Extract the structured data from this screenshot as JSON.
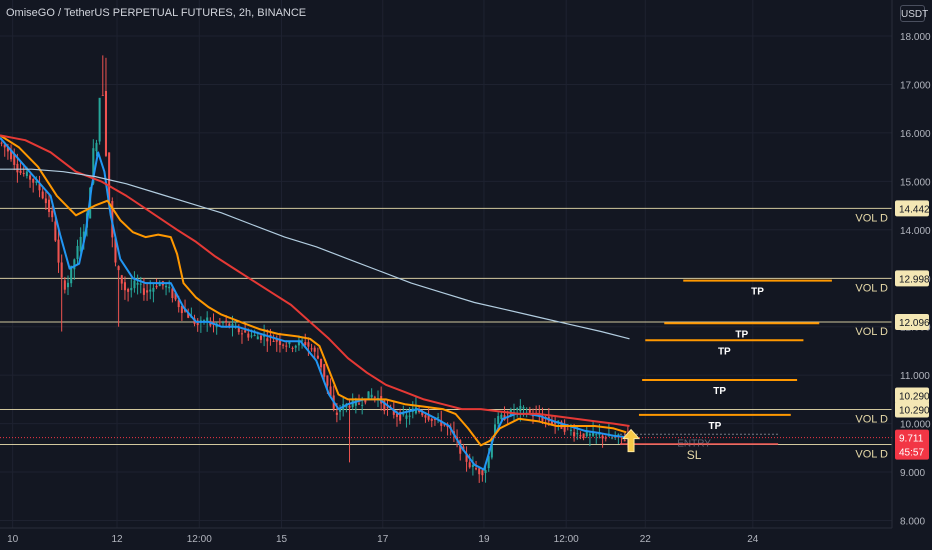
{
  "header": {
    "symbol_title": "OmiseGO / TetherUS PERPETUAL FUTURES, 2h, BINANCE",
    "currency": "USDT"
  },
  "colors": {
    "background": "#131722",
    "grid": "#1e2230",
    "candle_up": "#26a69a",
    "candle_down": "#ef5350",
    "ma_fast": "#2196f3",
    "ma_mid": "#ff9800",
    "ma_slow": "#e53935",
    "ma_long": "#b2cde0",
    "level_line": "#f4e7b4",
    "tp_line": "#ff9800",
    "sl_line": "#ef5350",
    "entry_arrow": "#f7c948",
    "price_badge": "#f23645"
  },
  "chart_data": {
    "type": "candlestick",
    "title": "OmiseGO / TetherUS PERPETUAL FUTURES, 2h, BINANCE",
    "timeframe": "2h",
    "y_axis": {
      "min": 7.8,
      "max": 18.3,
      "ticks": [
        8.0,
        9.0,
        10.0,
        11.0,
        12.0,
        13.0,
        14.0,
        15.0,
        16.0,
        17.0,
        18.0
      ],
      "tick_labels": [
        "8.000",
        "9.000",
        "10.000",
        "11.000",
        "12.000",
        "13.000",
        "14.000",
        "15.000",
        "16.000",
        "17.000",
        "18.000"
      ]
    },
    "x_axis": {
      "min": 0,
      "max": 282,
      "ticks": [
        {
          "x": 4,
          "label": "10"
        },
        {
          "x": 37,
          "label": "12"
        },
        {
          "x": 63,
          "label": "12:00"
        },
        {
          "x": 89,
          "label": "15"
        },
        {
          "x": 121,
          "label": "17"
        },
        {
          "x": 153,
          "label": "19"
        },
        {
          "x": 179,
          "label": "12:00"
        },
        {
          "x": 204,
          "label": "22"
        },
        {
          "x": 238,
          "label": "24"
        }
      ]
    },
    "candle_count": 199,
    "candle_anchors": [
      [
        0,
        15.8
      ],
      [
        3,
        15.6
      ],
      [
        6,
        15.2
      ],
      [
        9,
        15.1
      ],
      [
        12,
        14.9
      ],
      [
        15,
        14.5
      ],
      [
        17,
        14.1
      ],
      [
        19,
        13.0
      ],
      [
        21,
        12.8
      ],
      [
        23,
        13.3
      ],
      [
        26,
        13.9
      ],
      [
        28,
        14.4
      ],
      [
        29,
        15.5
      ],
      [
        31,
        16.0
      ],
      [
        32,
        17.5
      ],
      [
        33,
        16.2
      ],
      [
        34,
        15.0
      ],
      [
        36,
        13.4
      ],
      [
        38,
        13.0
      ],
      [
        40,
        12.7
      ],
      [
        43,
        12.9
      ],
      [
        46,
        12.7
      ],
      [
        50,
        12.9
      ],
      [
        53,
        12.8
      ],
      [
        55,
        12.6
      ],
      [
        57,
        12.4
      ],
      [
        60,
        12.2
      ],
      [
        63,
        12.0
      ],
      [
        65,
        12.2
      ],
      [
        67,
        12.0
      ],
      [
        70,
        12.1
      ],
      [
        73,
        12.0
      ],
      [
        76,
        11.9
      ],
      [
        80,
        11.8
      ],
      [
        84,
        11.8
      ],
      [
        88,
        11.7
      ],
      [
        92,
        11.6
      ],
      [
        96,
        11.7
      ],
      [
        99,
        11.5
      ],
      [
        101,
        11.3
      ],
      [
        103,
        10.9
      ],
      [
        105,
        10.4
      ],
      [
        106,
        10.1
      ],
      [
        107,
        10.3
      ],
      [
        110,
        10.4
      ],
      [
        113,
        10.4
      ],
      [
        115,
        10.5
      ],
      [
        117,
        10.6
      ],
      [
        120,
        10.5
      ],
      [
        122,
        10.3
      ],
      [
        125,
        10.2
      ],
      [
        128,
        10.1
      ],
      [
        131,
        10.3
      ],
      [
        134,
        10.2
      ],
      [
        137,
        10.1
      ],
      [
        140,
        10.0
      ],
      [
        143,
        9.8
      ],
      [
        146,
        9.4
      ],
      [
        149,
        9.1
      ],
      [
        152,
        9.0
      ],
      [
        154,
        9.1
      ],
      [
        156,
        10.0
      ],
      [
        158,
        10.1
      ],
      [
        161,
        10.2
      ],
      [
        164,
        10.3
      ],
      [
        168,
        10.2
      ],
      [
        172,
        10.1
      ],
      [
        176,
        10.0
      ],
      [
        179,
        9.9
      ],
      [
        182,
        9.8
      ],
      [
        186,
        9.75
      ],
      [
        190,
        9.75
      ],
      [
        194,
        9.7
      ],
      [
        198,
        9.7
      ]
    ],
    "series": [
      {
        "type": "line",
        "role": "ma_fast",
        "points": [
          [
            0,
            15.9
          ],
          [
            4,
            15.6
          ],
          [
            8,
            15.3
          ],
          [
            12,
            15.0
          ],
          [
            16,
            14.7
          ],
          [
            19,
            13.9
          ],
          [
            22,
            13.2
          ],
          [
            25,
            13.3
          ],
          [
            27,
            13.9
          ],
          [
            29,
            14.9
          ],
          [
            31,
            15.6
          ],
          [
            33,
            15.2
          ],
          [
            35,
            14.3
          ],
          [
            38,
            13.4
          ],
          [
            42,
            13.0
          ],
          [
            46,
            12.9
          ],
          [
            50,
            12.9
          ],
          [
            54,
            12.9
          ],
          [
            58,
            12.4
          ],
          [
            62,
            12.1
          ],
          [
            66,
            12.1
          ],
          [
            70,
            12.0
          ],
          [
            75,
            12.0
          ],
          [
            80,
            11.9
          ],
          [
            85,
            11.8
          ],
          [
            90,
            11.7
          ],
          [
            95,
            11.7
          ],
          [
            100,
            11.3
          ],
          [
            104,
            10.6
          ],
          [
            107,
            10.3
          ],
          [
            110,
            10.4
          ],
          [
            115,
            10.5
          ],
          [
            120,
            10.5
          ],
          [
            126,
            10.2
          ],
          [
            132,
            10.3
          ],
          [
            138,
            10.1
          ],
          [
            142,
            9.95
          ],
          [
            146,
            9.5
          ],
          [
            150,
            9.15
          ],
          [
            153,
            9.05
          ],
          [
            156,
            9.7
          ],
          [
            159,
            10.1
          ],
          [
            163,
            10.2
          ],
          [
            167,
            10.2
          ],
          [
            171,
            10.15
          ],
          [
            175,
            10.05
          ],
          [
            180,
            9.95
          ],
          [
            185,
            9.85
          ],
          [
            190,
            9.8
          ],
          [
            194,
            9.75
          ],
          [
            198,
            9.72
          ]
        ]
      },
      {
        "type": "line",
        "role": "ma_mid",
        "points": [
          [
            0,
            15.95
          ],
          [
            6,
            15.7
          ],
          [
            12,
            15.3
          ],
          [
            18,
            14.7
          ],
          [
            24,
            14.3
          ],
          [
            30,
            14.5
          ],
          [
            34,
            14.6
          ],
          [
            38,
            14.2
          ],
          [
            42,
            13.95
          ],
          [
            46,
            13.85
          ],
          [
            50,
            13.9
          ],
          [
            54,
            13.85
          ],
          [
            56,
            13.5
          ],
          [
            58,
            12.9
          ],
          [
            62,
            12.6
          ],
          [
            66,
            12.4
          ],
          [
            70,
            12.25
          ],
          [
            76,
            12.1
          ],
          [
            82,
            11.95
          ],
          [
            88,
            11.85
          ],
          [
            94,
            11.8
          ],
          [
            98,
            11.75
          ],
          [
            101,
            11.6
          ],
          [
            104,
            11.1
          ],
          [
            107,
            10.6
          ],
          [
            110,
            10.5
          ],
          [
            116,
            10.5
          ],
          [
            122,
            10.5
          ],
          [
            128,
            10.4
          ],
          [
            134,
            10.35
          ],
          [
            140,
            10.3
          ],
          [
            144,
            10.2
          ],
          [
            148,
            9.9
          ],
          [
            152,
            9.55
          ],
          [
            155,
            9.65
          ],
          [
            158,
            9.9
          ],
          [
            164,
            10.1
          ],
          [
            170,
            10.05
          ],
          [
            176,
            9.95
          ],
          [
            182,
            9.95
          ],
          [
            188,
            9.95
          ],
          [
            194,
            9.9
          ],
          [
            198,
            9.82
          ]
        ]
      },
      {
        "type": "line",
        "role": "ma_slow",
        "points": [
          [
            0,
            15.95
          ],
          [
            8,
            15.85
          ],
          [
            16,
            15.6
          ],
          [
            24,
            15.2
          ],
          [
            32,
            15.0
          ],
          [
            40,
            14.7
          ],
          [
            48,
            14.35
          ],
          [
            56,
            14.0
          ],
          [
            62,
            13.75
          ],
          [
            68,
            13.45
          ],
          [
            74,
            13.2
          ],
          [
            80,
            12.95
          ],
          [
            86,
            12.7
          ],
          [
            92,
            12.45
          ],
          [
            98,
            12.1
          ],
          [
            104,
            11.75
          ],
          [
            110,
            11.35
          ],
          [
            116,
            11.05
          ],
          [
            122,
            10.8
          ],
          [
            128,
            10.65
          ],
          [
            134,
            10.5
          ],
          [
            140,
            10.4
          ],
          [
            146,
            10.3
          ],
          [
            152,
            10.3
          ],
          [
            158,
            10.25
          ],
          [
            164,
            10.2
          ],
          [
            170,
            10.2
          ],
          [
            176,
            10.15
          ],
          [
            182,
            10.1
          ],
          [
            188,
            10.05
          ],
          [
            194,
            10.0
          ],
          [
            199,
            9.95
          ]
        ]
      },
      {
        "type": "line",
        "role": "ma_long",
        "points": [
          [
            0,
            15.25
          ],
          [
            10,
            15.25
          ],
          [
            20,
            15.2
          ],
          [
            30,
            15.1
          ],
          [
            40,
            14.95
          ],
          [
            50,
            14.75
          ],
          [
            60,
            14.55
          ],
          [
            70,
            14.35
          ],
          [
            80,
            14.1
          ],
          [
            90,
            13.85
          ],
          [
            100,
            13.65
          ],
          [
            110,
            13.4
          ],
          [
            120,
            13.15
          ],
          [
            130,
            12.9
          ],
          [
            140,
            12.7
          ],
          [
            150,
            12.5
          ],
          [
            160,
            12.35
          ],
          [
            170,
            12.2
          ],
          [
            180,
            12.05
          ],
          [
            190,
            11.9
          ],
          [
            199,
            11.75
          ]
        ]
      }
    ],
    "horizontal_levels": [
      {
        "price": 14.442,
        "label": "VOL D",
        "badge": "14.442"
      },
      {
        "price": 12.998,
        "label": "VOL D",
        "badge": "12.998"
      },
      {
        "price": 12.096,
        "label": "VOL D",
        "badge": "12.096"
      },
      {
        "price": 10.29,
        "label": "VOL D",
        "badge": "10.290"
      },
      {
        "price": 9.568,
        "label": "VOL D",
        "badge": "9.568"
      }
    ],
    "extra_badges": [
      {
        "price": 10.58,
        "text": "10.290"
      }
    ],
    "current_price": {
      "value": 9.711,
      "label": "9.711",
      "countdown": "45:57"
    },
    "trade_plan": {
      "take_profit": [
        {
          "price": 12.95,
          "x_start": 216,
          "x_end": 263,
          "label": "TP"
        },
        {
          "price": 12.07,
          "x_start": 210,
          "x_end": 259,
          "label": "TP"
        },
        {
          "price": 11.72,
          "x_start": 204,
          "x_end": 254,
          "label": "TP"
        },
        {
          "price": 10.9,
          "x_start": 203,
          "x_end": 252,
          "label": "TP"
        },
        {
          "price": 10.18,
          "x_start": 202,
          "x_end": 250,
          "label": "TP"
        }
      ],
      "entry": {
        "price": 9.78,
        "x_start": 196,
        "x_end": 246,
        "label": "ENTRY"
      },
      "stop_loss": {
        "price": 9.58,
        "x_start": 196,
        "x_end": 246,
        "label": "SL"
      }
    }
  }
}
